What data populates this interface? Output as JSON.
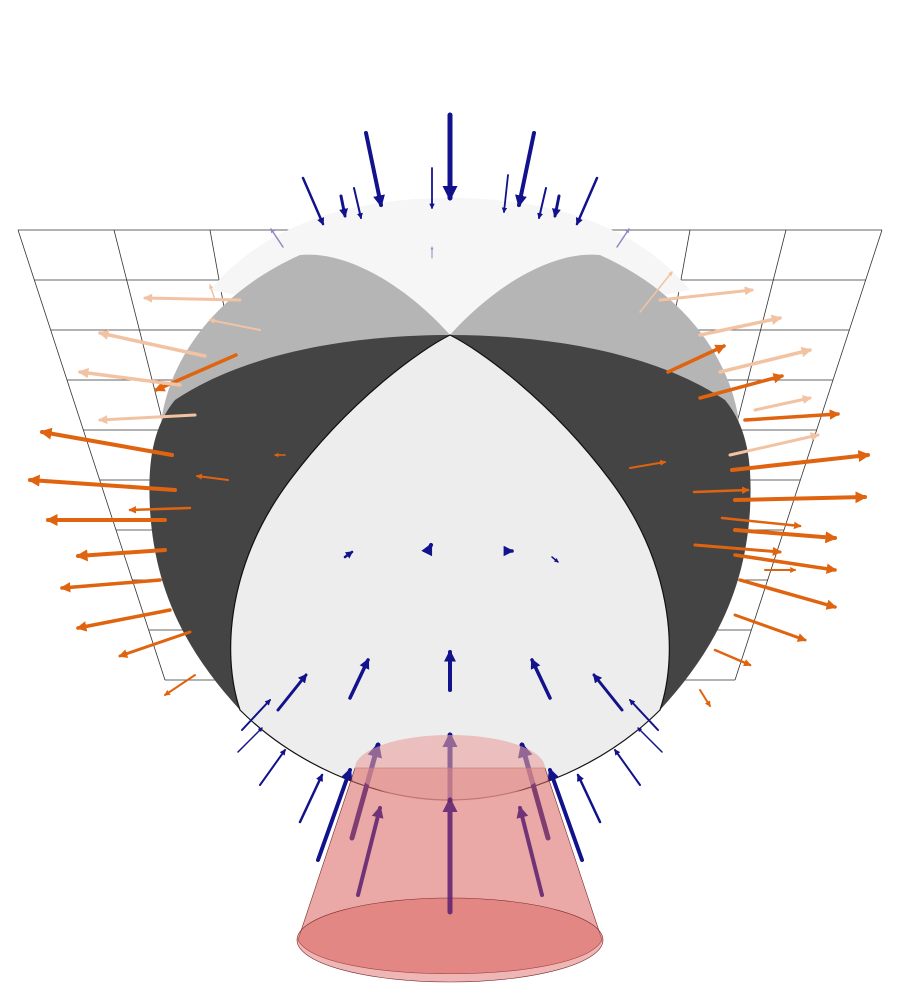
{
  "figure": {
    "colors": {
      "background": "#ffffff",
      "grid_line": "#333333",
      "compressional_quadrant": "#ededed",
      "compressional_quadrant_far": "#f6f6f6",
      "tensional_quadrant": "#444444",
      "tensional_quadrant_far": "#b5b5b5",
      "inward_arrows": "#12128c",
      "outward_arrows": "#e0640f",
      "outward_arrows_far": "#f2c3a2",
      "cone_fill": "#d9605c",
      "cone_edge": "#7a2a2a"
    }
  }
}
